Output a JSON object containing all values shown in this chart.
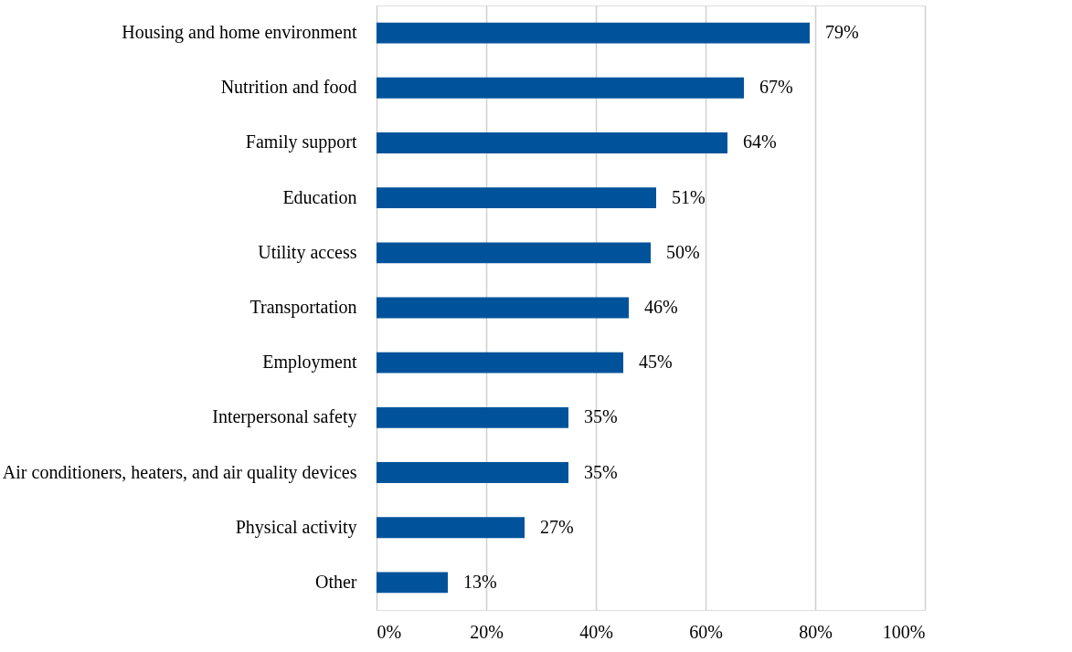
{
  "chart_data": {
    "type": "bar",
    "orientation": "horizontal",
    "categories": [
      "Housing and home environment",
      "Nutrition and food",
      "Family support",
      "Education",
      "Utility access",
      "Transportation",
      "Employment",
      "Interpersonal safety",
      "Air conditioners, heaters, and air quality devices",
      "Physical activity",
      "Other"
    ],
    "values": [
      79,
      67,
      64,
      51,
      50,
      46,
      45,
      35,
      35,
      27,
      13
    ],
    "value_labels": [
      "79%",
      "67%",
      "64%",
      "51%",
      "50%",
      "46%",
      "45%",
      "35%",
      "35%",
      "27%",
      "13%"
    ],
    "color": "#00539b",
    "xlim": [
      0,
      100
    ],
    "xticks": [
      {
        "value": 0,
        "label": "0%"
      },
      {
        "value": 20,
        "label": "20%"
      },
      {
        "value": 40,
        "label": "40%"
      },
      {
        "value": 60,
        "label": "60%"
      },
      {
        "value": 80,
        "label": "80%"
      },
      {
        "value": 100,
        "label": "100%"
      }
    ],
    "grid": "x"
  }
}
